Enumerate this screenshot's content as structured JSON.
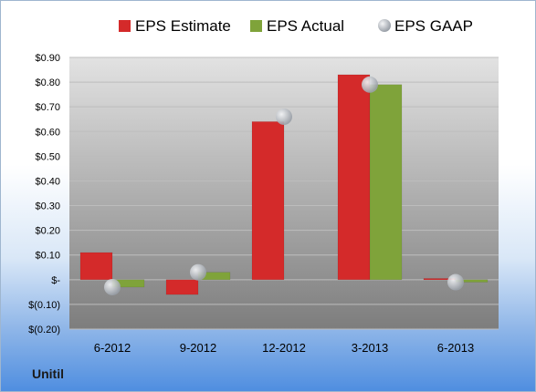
{
  "brand": "Unitil",
  "colors": {
    "estimate": "#d42a2a",
    "actual": "#7fa33a",
    "gaap": "#b7bcc4",
    "plot_top": "#e2e2e2",
    "plot_bottom": "#7d7d7d"
  },
  "chart_data": {
    "type": "bar",
    "categories": [
      "6-2012",
      "9-2012",
      "12-2012",
      "3-2013",
      "6-2013"
    ],
    "series": [
      {
        "name": "EPS Estimate",
        "marker": "bar",
        "values": [
          0.11,
          -0.06,
          0.64,
          0.83,
          0.005
        ]
      },
      {
        "name": "EPS Actual",
        "marker": "bar",
        "values": [
          -0.03,
          0.03,
          null,
          0.79,
          -0.01
        ]
      },
      {
        "name": "EPS GAAP",
        "marker": "circle",
        "values": [
          -0.03,
          0.03,
          0.66,
          0.79,
          -0.01
        ]
      }
    ],
    "ylim": [
      -0.2,
      0.9
    ],
    "yticks": [
      0.9,
      0.8,
      0.7,
      0.6,
      0.5,
      0.4,
      0.3,
      0.2,
      0.1,
      0,
      -0.1,
      -0.2
    ],
    "ytick_labels": [
      "$0.90",
      "$0.80",
      "$0.70",
      "$0.60",
      "$0.50",
      "$0.40",
      "$0.30",
      "$0.20",
      "$0.10",
      "$-",
      "$(0.10)",
      "$(0.20)"
    ],
    "grid": true,
    "legend": "top"
  }
}
